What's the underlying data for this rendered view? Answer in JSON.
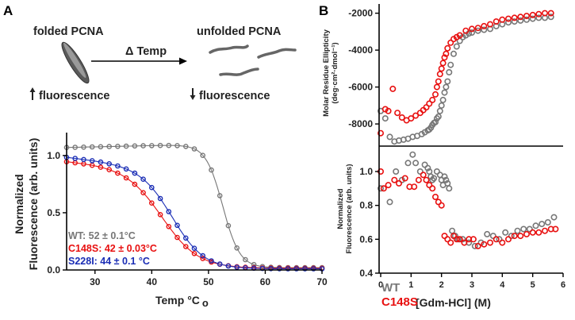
{
  "panel_a": {
    "letter": "A",
    "cartoon": {
      "folded_label": "folded PCNA",
      "unfolded_label": "unfolded PCNA",
      "arrow_label": "Δ Temp",
      "fluor_up": "fluorescence",
      "fluor_down": "fluorescence",
      "up_arrow": "up-arrow-icon",
      "down_arrow": "down-arrow-icon"
    }
  },
  "panel_b": {
    "letter": "B"
  },
  "colors": {
    "wt": "#777777",
    "c148s": "#e81010",
    "s228i": "#1a2db5",
    "axis": "#000000"
  },
  "chart_data": [
    {
      "id": "thermal-melt",
      "type": "line",
      "xlabel": "Temp °C",
      "xlabel_suffix": "o",
      "ylabel": [
        "Normalized",
        "Fluorescence (arb. units)"
      ],
      "xlim": [
        25,
        70
      ],
      "ylim": [
        0,
        1.2
      ],
      "xticks": [
        "30",
        "40",
        "50",
        "60",
        "70"
      ],
      "yticks": [
        "0.0",
        "0.5",
        "1.0"
      ],
      "series": [
        {
          "name": "WT",
          "label": "WT: 52 ± 0.1°C",
          "color": "#777777",
          "midpoint": 52.5,
          "width": 1.5,
          "top": 1.07,
          "slope": 0.0011,
          "bottom": 0.02
        },
        {
          "name": "C148S",
          "label": "C148S: 42 ± 0.03°C",
          "color": "#e81010",
          "midpoint": 42.0,
          "width": 3.2,
          "top": 0.95,
          "slope": -0.004,
          "bottom": 0.015
        },
        {
          "name": "S228I",
          "label": "S228I: 44 ± 0.1 °C",
          "color": "#1a2db5",
          "midpoint": 43.8,
          "width": 2.8,
          "top": 0.985,
          "slope": -0.0055,
          "bottom": 0.01
        }
      ]
    },
    {
      "id": "cd-denaturation",
      "type": "scatter",
      "ylabel": [
        "Molar Residue Ellipticity",
        "(deg·cm²·dmol⁻¹)"
      ],
      "xlim": [
        0,
        6
      ],
      "ylim": [
        -9200,
        -1500
      ],
      "yticks": [
        "-8000",
        "-6000",
        "-4000",
        "-2000"
      ],
      "series": [
        {
          "name": "WT",
          "color": "#777777",
          "x": [
            0,
            0.15,
            0.3,
            0.45,
            0.6,
            0.75,
            0.9,
            1.05,
            1.2,
            1.35,
            1.45,
            1.55,
            1.6,
            1.65,
            1.7,
            1.75,
            1.8,
            1.85,
            1.9,
            1.95,
            2.0,
            2.05,
            2.1,
            2.15,
            2.2,
            2.25,
            2.3,
            2.4,
            2.5,
            2.6,
            2.7,
            2.8,
            2.9,
            3.0,
            3.2,
            3.4,
            3.6,
            3.8,
            4.0,
            4.2,
            4.4,
            4.6,
            4.8,
            5.0,
            5.2,
            5.4,
            5.6
          ],
          "y": [
            -7300,
            -7700,
            -8700,
            -8950,
            -8900,
            -8850,
            -8800,
            -8700,
            -8650,
            -8550,
            -8450,
            -8350,
            -8300,
            -8200,
            -8050,
            -7950,
            -7900,
            -7700,
            -7600,
            -7300,
            -7000,
            -6700,
            -6300,
            -6000,
            -5700,
            -5200,
            -4800,
            -4200,
            -3800,
            -3500,
            -3300,
            -3200,
            -3100,
            -3050,
            -2950,
            -2900,
            -2850,
            -2700,
            -2600,
            -2500,
            -2450,
            -2400,
            -2350,
            -2300,
            -2250,
            -2250,
            -2200
          ]
        },
        {
          "name": "C148S",
          "color": "#e81010",
          "x": [
            0,
            0.15,
            0.25,
            0.4,
            0.55,
            0.7,
            0.85,
            1.0,
            1.15,
            1.3,
            1.4,
            1.5,
            1.6,
            1.7,
            1.8,
            1.85,
            1.9,
            1.95,
            2.0,
            2.05,
            2.1,
            2.15,
            2.2,
            2.3,
            2.4,
            2.5,
            2.6,
            2.8,
            3.0,
            3.2,
            3.4,
            3.6,
            3.8,
            4.0,
            4.2,
            4.4,
            4.6,
            4.8,
            5.0,
            5.2,
            5.4,
            5.6
          ],
          "y": [
            -8500,
            -7200,
            -7300,
            -6100,
            -7400,
            -7650,
            -7800,
            -7700,
            -7550,
            -7400,
            -7250,
            -7100,
            -6900,
            -6700,
            -6400,
            -6000,
            -5700,
            -5300,
            -5000,
            -4700,
            -4400,
            -4200,
            -3900,
            -3600,
            -3400,
            -3300,
            -3200,
            -2950,
            -2850,
            -2800,
            -2700,
            -2600,
            -2450,
            -2350,
            -2300,
            -2250,
            -2200,
            -2150,
            -2100,
            -2050,
            -2000,
            -2000
          ]
        }
      ]
    },
    {
      "id": "fluor-denaturation",
      "type": "scatter",
      "xlabel": "[Gdm-HCl] (M)",
      "ylabel": [
        "Normalized",
        "Fluorescence (arb. units)"
      ],
      "xlim": [
        0,
        6
      ],
      "ylim": [
        0.4,
        1.15
      ],
      "xticks": [
        "0",
        "1",
        "2",
        "3",
        "4",
        "5",
        "6"
      ],
      "yticks": [
        "0.4",
        "0.6",
        "0.8",
        "1.0"
      ],
      "series": [
        {
          "name": "WT",
          "label": "WT",
          "color": "#777777",
          "x": [
            0,
            0.3,
            0.5,
            0.7,
            0.9,
            1.05,
            1.15,
            1.3,
            1.45,
            1.55,
            1.6,
            1.65,
            1.7,
            1.75,
            1.85,
            1.95,
            2.0,
            2.05,
            2.1,
            2.15,
            2.2,
            2.25,
            2.35,
            2.45,
            2.55,
            2.7,
            2.9,
            3.1,
            3.3,
            3.5,
            3.7,
            3.9,
            4.1,
            4.3,
            4.5,
            4.7,
            4.9,
            5.1,
            5.3,
            5.5,
            5.7
          ],
          "y": [
            0.9,
            0.82,
            1.0,
            0.95,
            1.05,
            1.1,
            1.05,
            1.0,
            1.04,
            1.02,
            1.0,
            0.97,
            0.95,
            0.96,
            1.0,
            0.98,
            0.95,
            0.92,
            0.97,
            0.95,
            0.93,
            0.9,
            0.65,
            0.62,
            0.6,
            0.6,
            0.58,
            0.56,
            0.58,
            0.63,
            0.62,
            0.6,
            0.64,
            0.62,
            0.65,
            0.66,
            0.66,
            0.68,
            0.69,
            0.7,
            0.73
          ]
        },
        {
          "name": "C148S",
          "label": "C148S",
          "color": "#e81010",
          "x": [
            0,
            0.1,
            0.25,
            0.45,
            0.6,
            0.8,
            0.95,
            1.1,
            1.25,
            1.4,
            1.5,
            1.6,
            1.7,
            1.8,
            1.9,
            2.0,
            2.1,
            2.2,
            2.3,
            2.4,
            2.5,
            2.6,
            2.75,
            2.9,
            3.05,
            3.2,
            3.4,
            3.6,
            3.8,
            4.0,
            4.2,
            4.4,
            4.6,
            4.8,
            5.0,
            5.2,
            5.4,
            5.6,
            5.75
          ],
          "y": [
            1.0,
            0.9,
            0.92,
            0.95,
            0.93,
            0.96,
            0.91,
            0.91,
            0.95,
            0.98,
            0.95,
            0.92,
            0.9,
            0.85,
            0.82,
            0.8,
            0.62,
            0.6,
            0.58,
            0.62,
            0.6,
            0.6,
            0.58,
            0.6,
            0.6,
            0.56,
            0.57,
            0.58,
            0.6,
            0.58,
            0.6,
            0.62,
            0.62,
            0.63,
            0.64,
            0.64,
            0.65,
            0.66,
            0.66
          ]
        }
      ]
    }
  ]
}
